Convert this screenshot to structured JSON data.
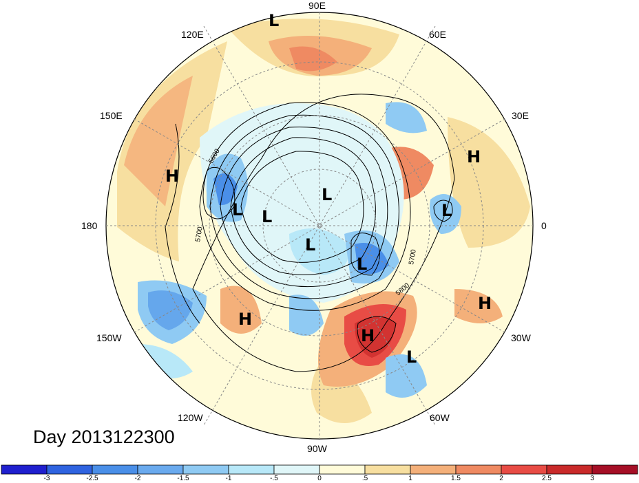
{
  "day_label": "Day 2013122300",
  "longitude_labels": {
    "lon_90E": "90E",
    "lon_120E": "120E",
    "lon_60E": "60E",
    "lon_150E": "150E",
    "lon_30E": "30E",
    "lon_180": "180",
    "lon_0": "0",
    "lon_150W": "150W",
    "lon_30W": "30W",
    "lon_120W": "120W",
    "lon_60W": "60W",
    "lon_90W": "90W"
  },
  "pressure_centers": [
    {
      "type": "L",
      "region": "east-siberia-north"
    },
    {
      "type": "H",
      "region": "north-pacific-west"
    },
    {
      "type": "L",
      "region": "bering-sea"
    },
    {
      "type": "L",
      "region": "alaska"
    },
    {
      "type": "L",
      "region": "arctic-siberian"
    },
    {
      "type": "L",
      "region": "canadian-arctic"
    },
    {
      "type": "L",
      "region": "baffin-bay"
    },
    {
      "type": "H",
      "region": "east-pacific"
    },
    {
      "type": "H",
      "region": "western-atlantic"
    },
    {
      "type": "L",
      "region": "central-atlantic"
    },
    {
      "type": "H",
      "region": "northeast-atlantic"
    },
    {
      "type": "L",
      "region": "north-sea"
    },
    {
      "type": "H",
      "region": "central-asia"
    }
  ],
  "contour_labels": [
    "5600",
    "5700",
    "5700",
    "5800"
  ],
  "colorbar": {
    "ticks": [
      "-3",
      "-2.5",
      "-2",
      "-1.5",
      "-1",
      "-.5",
      "0",
      ".5",
      "1",
      "1.5",
      "2",
      "2.5",
      "3"
    ],
    "colors": [
      "#1f1fce",
      "#2f63e0",
      "#4a8fe8",
      "#6aaaee",
      "#8fcaf3",
      "#b8e8f8",
      "#e0f6f8",
      "#fffbd9",
      "#f7dfa0",
      "#f4b07a",
      "#ef8a62",
      "#e84c45",
      "#c92a2a",
      "#a50f26"
    ]
  },
  "colors": {
    "warm_strong": "#e84c45",
    "warm_mid": "#f4b07a",
    "warm_light": "#f7dfa0",
    "cool_light": "#b8e8f8",
    "cool_mid": "#8fcaf3",
    "cool_strong": "#4a8fe8",
    "neutral": "#fffbd9"
  }
}
